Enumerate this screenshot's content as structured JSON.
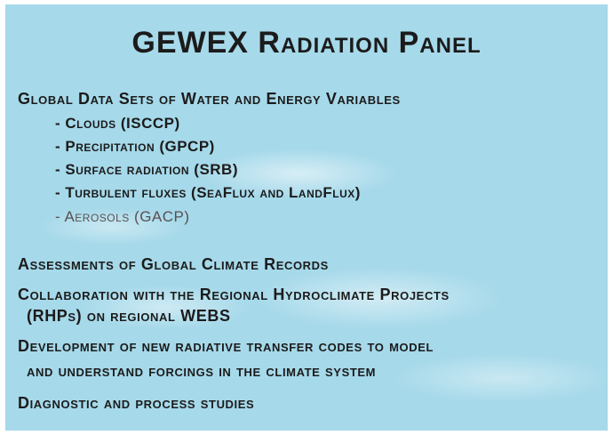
{
  "title": "GEWEX Radiation Panel",
  "sections": [
    {
      "lines": [
        "Global Data Sets of Water and Energy Variables"
      ],
      "items": [
        "- Clouds (ISCCP)",
        "- Precipitation (GPCP)",
        "- Surface radiation (SRB)",
        "- Turbulent fluxes (SeaFlux and LandFlux)",
        "- Aerosols (GACP)"
      ]
    },
    {
      "lines": [
        "Assessments of Global Climate Records"
      ]
    },
    {
      "lines": [
        "Collaboration with the Regional Hydroclimate Projects",
        "(RHPs) on regional WEBS"
      ]
    },
    {
      "lines": [
        "Development of new radiative transfer codes to model",
        "and understand forcings in the climate system"
      ]
    },
    {
      "lines": [
        "Diagnostic and process studies"
      ]
    }
  ]
}
